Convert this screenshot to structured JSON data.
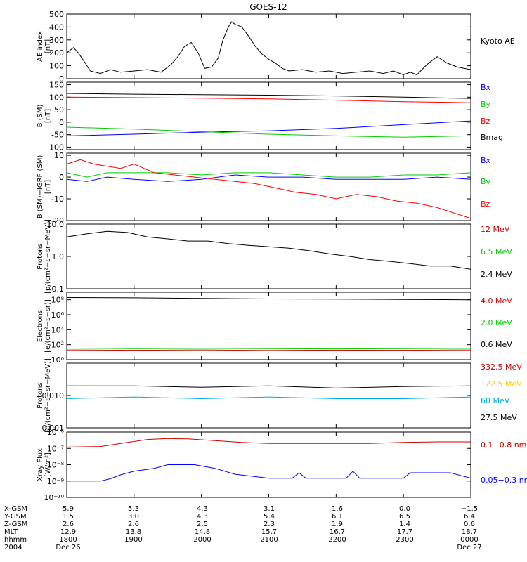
{
  "title": "GOES-12",
  "chart_data": [
    {
      "type": "line",
      "ylabel": [
        "AE index",
        "[nT]"
      ],
      "ylim": [
        0,
        500
      ],
      "yticks": [
        0,
        100,
        200,
        300,
        400,
        500
      ],
      "xlim": [
        18,
        24
      ],
      "series": [
        {
          "name": "Kyoto AE",
          "color": "#000000",
          "x": [
            18.0,
            18.1,
            18.17,
            18.25,
            18.35,
            18.5,
            18.65,
            18.8,
            19.0,
            19.2,
            19.4,
            19.55,
            19.65,
            19.75,
            19.85,
            19.95,
            20.05,
            20.15,
            20.25,
            20.32,
            20.4,
            20.45,
            20.5,
            20.6,
            20.7,
            20.8,
            20.9,
            21.0,
            21.1,
            21.2,
            21.3,
            21.5,
            21.7,
            21.9,
            22.1,
            22.3,
            22.5,
            22.7,
            22.85,
            23.0,
            23.1,
            23.2,
            23.35,
            23.5,
            23.65,
            23.8,
            24.0
          ],
          "y": [
            200,
            240,
            200,
            140,
            60,
            40,
            70,
            50,
            60,
            70,
            50,
            110,
            170,
            250,
            280,
            200,
            80,
            90,
            160,
            300,
            400,
            440,
            420,
            400,
            330,
            250,
            190,
            150,
            120,
            80,
            60,
            70,
            50,
            60,
            40,
            50,
            60,
            40,
            60,
            30,
            50,
            30,
            110,
            170,
            120,
            90,
            70
          ]
        }
      ]
    },
    {
      "type": "line",
      "ylabel": [
        "B (SM)",
        "[nT]"
      ],
      "ylim": [
        -110,
        160
      ],
      "yticks": [
        -100,
        -50,
        0,
        50,
        100,
        150
      ],
      "xlim": [
        18,
        24
      ],
      "series": [
        {
          "name": "Bx",
          "color": "#0000ff",
          "x": [
            18,
            19,
            20,
            21,
            22,
            23,
            24
          ],
          "y": [
            -55,
            -48,
            -40,
            -35,
            -25,
            -10,
            5
          ]
        },
        {
          "name": "By",
          "color": "#00cc00",
          "x": [
            18,
            19,
            20,
            21,
            22,
            23,
            24
          ],
          "y": [
            -20,
            -28,
            -38,
            -48,
            -55,
            -60,
            -55
          ]
        },
        {
          "name": "Bz",
          "color": "#ff0000",
          "x": [
            18,
            19,
            20,
            21,
            22,
            23,
            24
          ],
          "y": [
            100,
            98,
            96,
            93,
            88,
            82,
            78
          ]
        },
        {
          "name": "Bmag",
          "color": "#000000",
          "x": [
            18,
            19,
            20,
            21,
            22,
            23,
            24
          ],
          "y": [
            115,
            112,
            110,
            108,
            105,
            100,
            95
          ]
        }
      ]
    },
    {
      "type": "line",
      "ylabel": [
        "B (SM)−IGRF (SM)",
        "[nT]"
      ],
      "ylim": [
        -20,
        11
      ],
      "yticks": [
        -20,
        -10,
        0,
        10
      ],
      "xlim": [
        18,
        24
      ],
      "series": [
        {
          "name": "Bx",
          "color": "#0000ff",
          "x": [
            18,
            18.3,
            18.6,
            19,
            19.5,
            20,
            20.5,
            21,
            21.5,
            22,
            22.5,
            23,
            23.5,
            24
          ],
          "y": [
            -1,
            -2,
            0,
            -1,
            -2,
            -1,
            1,
            0,
            0,
            -1,
            -1,
            -1,
            0,
            -1
          ]
        },
        {
          "name": "By",
          "color": "#00cc00",
          "x": [
            18,
            18.3,
            18.6,
            19,
            19.5,
            20,
            20.5,
            21,
            21.5,
            22,
            22.5,
            23,
            23.5,
            24
          ],
          "y": [
            2,
            0,
            2,
            2,
            2,
            1,
            2,
            2,
            1,
            0,
            0,
            1,
            1,
            2
          ]
        },
        {
          "name": "Bz",
          "color": "#ff0000",
          "x": [
            18,
            18.2,
            18.4,
            18.6,
            18.8,
            19,
            19.3,
            19.6,
            19.9,
            20.2,
            20.5,
            20.8,
            21.1,
            21.4,
            21.7,
            22,
            22.3,
            22.6,
            22.9,
            23.2,
            23.5,
            23.8,
            24
          ],
          "y": [
            6,
            8,
            6,
            5,
            4,
            6,
            2,
            1,
            0,
            -1,
            -2,
            -3,
            -5,
            -7,
            -8,
            -10,
            -8,
            -9,
            -11,
            -12,
            -14,
            -17,
            -19
          ]
        }
      ]
    },
    {
      "type": "line",
      "ylabel": [
        "Protons",
        "[p/(cm²−s−sr−MeV)]"
      ],
      "yscale": "log",
      "ylim": [
        0.1,
        10
      ],
      "yticks": [
        0.1,
        1.0,
        10.0
      ],
      "yticklabels": [
        "0.1",
        "1.0",
        "10.0"
      ],
      "xlim": [
        18,
        24
      ],
      "series": [
        {
          "name": "12 MeV",
          "color": "#cc0000",
          "x": [],
          "y": []
        },
        {
          "name": "6.5 MeV",
          "color": "#00cc00",
          "x": [],
          "y": []
        },
        {
          "name": "2.4 MeV",
          "color": "#000000",
          "x": [
            18,
            18.3,
            18.6,
            18.9,
            19.2,
            19.5,
            19.8,
            20.1,
            20.4,
            20.7,
            21.0,
            21.3,
            21.6,
            21.9,
            22.2,
            22.5,
            22.8,
            23.1,
            23.4,
            23.7,
            24
          ],
          "y": [
            4,
            5,
            6,
            5.5,
            4,
            3.5,
            3,
            3,
            2.5,
            2.2,
            2,
            1.8,
            1.5,
            1.2,
            1.0,
            0.8,
            0.7,
            0.6,
            0.5,
            0.5,
            0.4
          ]
        }
      ]
    },
    {
      "type": "line",
      "ylabel": [
        "Electrons",
        "[e/(cm²−s−sr)]"
      ],
      "yscale": "log",
      "ylim": [
        1,
        1000000000
      ],
      "yticks": [
        1,
        100,
        10000,
        1000000,
        100000000
      ],
      "yticklabels": [
        "10⁰",
        "10²",
        "10⁴",
        "10⁶",
        "10⁸"
      ],
      "xlim": [
        18,
        24
      ],
      "series": [
        {
          "name": "4.0 MeV",
          "color": "#cc0000",
          "x": [
            18,
            19,
            20,
            21,
            22,
            23,
            24
          ],
          "y": [
            20,
            18,
            20,
            17,
            19,
            18,
            20
          ]
        },
        {
          "name": "2.0 MeV",
          "color": "#00cc00",
          "x": [
            18,
            19,
            20,
            21,
            22,
            23,
            24
          ],
          "y": [
            35,
            30,
            32,
            30,
            28,
            30,
            32
          ]
        },
        {
          "name": "0.6 MeV",
          "color": "#000000",
          "x": [
            18,
            19,
            20,
            21,
            22,
            23,
            24
          ],
          "y": [
            200000000,
            180000000,
            150000000,
            130000000,
            120000000,
            110000000,
            100000000
          ]
        }
      ]
    },
    {
      "type": "line",
      "ylabel": [
        "Protons",
        "[p/(cm²−s−sr−MeV)]"
      ],
      "yscale": "log",
      "ylim": [
        0.001,
        0.1
      ],
      "yticks": [
        0.001,
        0.01
      ],
      "yticklabels": [
        "0.001",
        "0.010"
      ],
      "xlim": [
        18,
        24
      ],
      "series": [
        {
          "name": "332.5 MeV",
          "color": "#cc0000",
          "x": [],
          "y": []
        },
        {
          "name": "122.5 MeV",
          "color": "#ffcc00",
          "x": [],
          "y": []
        },
        {
          "name": "60 MeV",
          "color": "#00aadd",
          "x": [
            18,
            19,
            20,
            21,
            22,
            23,
            24
          ],
          "y": [
            0.008,
            0.009,
            0.008,
            0.009,
            0.008,
            0.008,
            0.009
          ]
        },
        {
          "name": "27.5 MeV",
          "color": "#000000",
          "x": [
            18,
            19,
            20,
            21,
            22,
            23,
            24
          ],
          "y": [
            0.02,
            0.02,
            0.018,
            0.02,
            0.017,
            0.019,
            0.02
          ]
        }
      ]
    },
    {
      "type": "line",
      "ylabel": [
        "Xray Flux",
        "[W/m²]"
      ],
      "yscale": "log",
      "ylim": [
        1e-10,
        1e-06
      ],
      "yticks": [
        1e-10,
        1e-09,
        1e-08,
        1e-07,
        1e-06
      ],
      "yticklabels": [
        "10⁻¹⁰",
        "10⁻⁹",
        "10⁻⁸",
        "10⁻⁷",
        "10⁻⁶"
      ],
      "xlim": [
        18,
        24
      ],
      "series": [
        {
          "name": "0.1−0.8 nm",
          "color": "#cc0000",
          "x": [
            18,
            18.5,
            18.8,
            19.2,
            19.5,
            19.8,
            20.2,
            20.6,
            21,
            21.5,
            22,
            22.5,
            23,
            23.5,
            24
          ],
          "y": [
            1.2e-07,
            1.3e-07,
            2e-07,
            3.5e-07,
            4e-07,
            3.8e-07,
            3e-07,
            2.3e-07,
            2e-07,
            2e-07,
            2e-07,
            2e-07,
            2.3e-07,
            2.5e-07,
            2.5e-07
          ]
        },
        {
          "name": "0.05−0.3 nm",
          "color": "#0000ff",
          "x": [
            18,
            18.5,
            18.65,
            18.8,
            19.0,
            19.3,
            19.5,
            19.9,
            20.2,
            20.5,
            21.0,
            21.35,
            21.45,
            21.55,
            22.0,
            22.15,
            22.25,
            22.35,
            22.7,
            23.0,
            23.1,
            23.7,
            24
          ],
          "y": [
            1e-09,
            1e-09,
            1.4e-09,
            2.4e-09,
            4e-09,
            6e-09,
            1e-08,
            1e-08,
            6e-09,
            2.6e-09,
            1.5e-09,
            1.5e-09,
            3.2e-09,
            1.5e-09,
            1.5e-09,
            1.5e-09,
            4e-09,
            1.5e-09,
            1.5e-09,
            1.5e-09,
            3.2e-09,
            3.2e-09,
            1.5e-09
          ]
        }
      ]
    }
  ],
  "xaxis_table": {
    "row_labels": [
      "X-GSM",
      "Y-GSM",
      "Z-GSM",
      "MLT",
      "hhmm",
      "2004"
    ],
    "columns": [
      [
        "5.9",
        "1.5",
        "2.6",
        "12.9",
        "1800",
        "Dec 26"
      ],
      [
        "5.3",
        "3.0",
        "2.6",
        "13.8",
        "1900",
        ""
      ],
      [
        "4.3",
        "4.3",
        "2.5",
        "14.8",
        "2000",
        ""
      ],
      [
        "3.1",
        "5.4",
        "2.3",
        "15.7",
        "2100",
        ""
      ],
      [
        "1.6",
        "6.1",
        "1.9",
        "16.7",
        "2200",
        ""
      ],
      [
        "0.0",
        "6.5",
        "1.4",
        "17.7",
        "2300",
        ""
      ],
      [
        "−1.5",
        "6.4",
        "0.6",
        "18.7",
        "0000",
        "Dec 27"
      ]
    ]
  }
}
